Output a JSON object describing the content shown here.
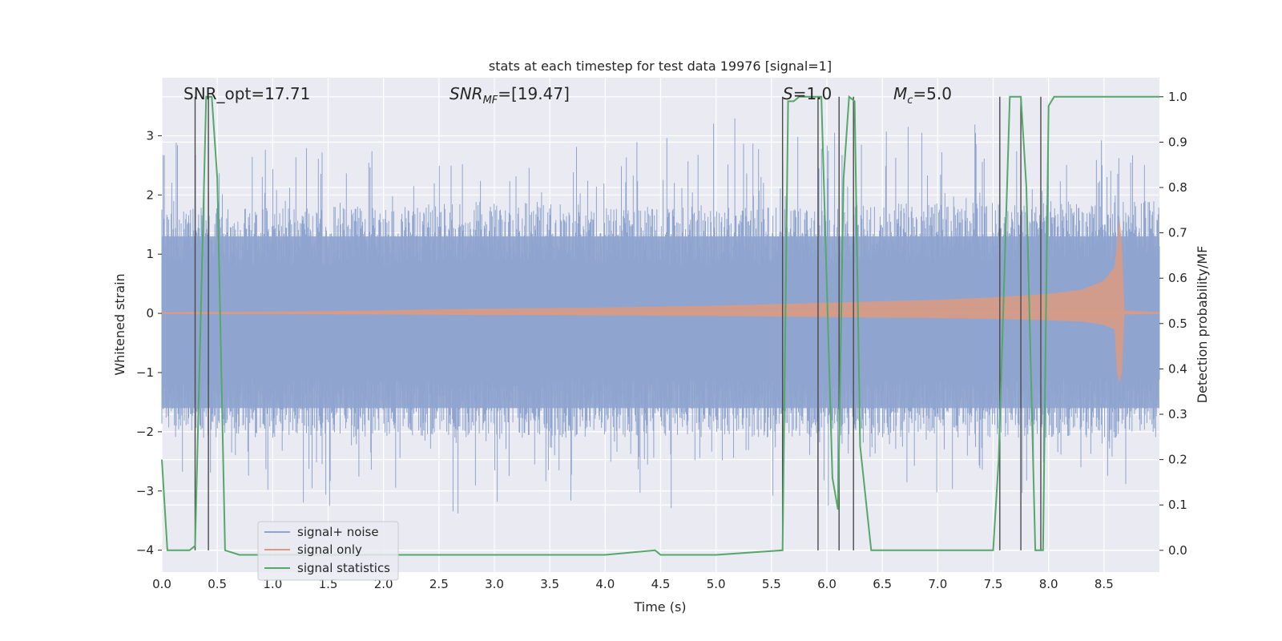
{
  "chart_data": {
    "type": "line",
    "title": "stats at each timestep for test data 19976 [signal=1]",
    "xlabel": "Time (s)",
    "ylabel": "Whitened strain",
    "ylabel_right": "Detection probability/MF",
    "xlim": [
      0.0,
      9.0
    ],
    "ylim": [
      -4.37,
      3.98
    ],
    "ylim_right": [
      -0.048,
      1.042
    ],
    "x_ticks": [
      "0.0",
      "0.5",
      "1.0",
      "1.5",
      "2.0",
      "2.5",
      "3.0",
      "3.5",
      "4.0",
      "4.5",
      "5.0",
      "5.5",
      "6.0",
      "6.5",
      "7.0",
      "7.5",
      "8.0",
      "8.5"
    ],
    "y_ticks": [
      "3",
      "2",
      "1",
      "0",
      "−1",
      "−2",
      "−3",
      "−4"
    ],
    "y_right_ticks": [
      "1.0",
      "0.9",
      "0.8",
      "0.7",
      "0.6",
      "0.5",
      "0.4",
      "0.3",
      "0.2",
      "0.1",
      "0.0"
    ],
    "annotations": {
      "snr_opt": "SNR_opt=17.71",
      "snr_mf_base": "SNR",
      "snr_mf_sub": "MF",
      "snr_mf_rest": "=[19.47]",
      "s_base": "S",
      "s_rest": "=1.0",
      "mc_base": "M",
      "mc_sub": "c",
      "mc_rest": "=5.0"
    },
    "legend": {
      "placement": "lower-left",
      "entries": [
        "signal+ noise",
        "signal only",
        "signal statistics"
      ]
    },
    "series": [
      {
        "name": "signal+ noise",
        "color": "#8fa5cf",
        "description": "noise band",
        "envelope_upper": [
          [
            0.0,
            1.3
          ],
          [
            1.0,
            1.3
          ],
          [
            2.0,
            1.3
          ],
          [
            3.0,
            1.4
          ],
          [
            4.0,
            1.3
          ],
          [
            5.0,
            1.3
          ],
          [
            6.0,
            1.3
          ],
          [
            7.0,
            1.4
          ],
          [
            8.0,
            1.4
          ],
          [
            9.0,
            1.4
          ]
        ],
        "envelope_lower": [
          [
            0.0,
            -1.6
          ],
          [
            1.0,
            -1.6
          ],
          [
            2.0,
            -1.6
          ],
          [
            3.0,
            -1.6
          ],
          [
            4.0,
            -1.6
          ],
          [
            5.0,
            -1.6
          ],
          [
            6.0,
            -1.6
          ],
          [
            7.0,
            -1.6
          ],
          [
            8.0,
            -1.6
          ],
          [
            9.0,
            -1.6
          ]
        ]
      },
      {
        "name": "signal only",
        "color": "#dd9a80",
        "envelope": [
          [
            0.0,
            0.02
          ],
          [
            1.0,
            0.03
          ],
          [
            2.0,
            0.05
          ],
          [
            2.5,
            0.07
          ],
          [
            3.0,
            0.08
          ],
          [
            4.0,
            0.1
          ],
          [
            5.0,
            0.13
          ],
          [
            6.0,
            0.18
          ],
          [
            7.0,
            0.23
          ],
          [
            7.5,
            0.27
          ],
          [
            8.0,
            0.33
          ],
          [
            8.3,
            0.4
          ],
          [
            8.5,
            0.55
          ],
          [
            8.6,
            0.8
          ],
          [
            8.65,
            1.85
          ],
          [
            8.68,
            0.05
          ],
          [
            9.0,
            0.02
          ]
        ]
      },
      {
        "name": "signal statistics",
        "color": "#55a868",
        "axis": "right",
        "points": [
          [
            0.0,
            0.2
          ],
          [
            0.05,
            0.0
          ],
          [
            0.25,
            0.0
          ],
          [
            0.3,
            0.01
          ],
          [
            0.4,
            1.0
          ],
          [
            0.45,
            1.0
          ],
          [
            0.5,
            0.82
          ],
          [
            0.57,
            0.0
          ],
          [
            0.7,
            -0.01
          ],
          [
            1.0,
            -0.01
          ],
          [
            2.0,
            -0.01
          ],
          [
            3.0,
            -0.01
          ],
          [
            4.0,
            -0.01
          ],
          [
            4.45,
            0.0
          ],
          [
            4.5,
            -0.01
          ],
          [
            5.0,
            -0.01
          ],
          [
            5.6,
            0.0
          ],
          [
            5.65,
            0.99
          ],
          [
            5.7,
            0.99
          ],
          [
            5.75,
            1.0
          ],
          [
            5.95,
            1.0
          ],
          [
            6.05,
            0.16
          ],
          [
            6.1,
            0.09
          ],
          [
            6.15,
            0.82
          ],
          [
            6.2,
            1.0
          ],
          [
            6.25,
            0.99
          ],
          [
            6.3,
            0.23
          ],
          [
            6.4,
            0.0
          ],
          [
            7.0,
            0.0
          ],
          [
            7.5,
            0.0
          ],
          [
            7.55,
            0.2
          ],
          [
            7.65,
            1.0
          ],
          [
            7.75,
            1.0
          ],
          [
            7.8,
            0.8
          ],
          [
            7.88,
            0.0
          ],
          [
            7.95,
            0.0
          ],
          [
            8.0,
            0.98
          ],
          [
            8.05,
            1.0
          ],
          [
            9.0,
            1.0
          ]
        ]
      },
      {
        "name": "trigger lines",
        "color": "#4a4a4a",
        "axis": "right",
        "x_positions": [
          0.3,
          0.42,
          5.6,
          5.92,
          6.11,
          6.24,
          7.56,
          7.75,
          7.93
        ],
        "y_top": 1.0
      }
    ]
  }
}
